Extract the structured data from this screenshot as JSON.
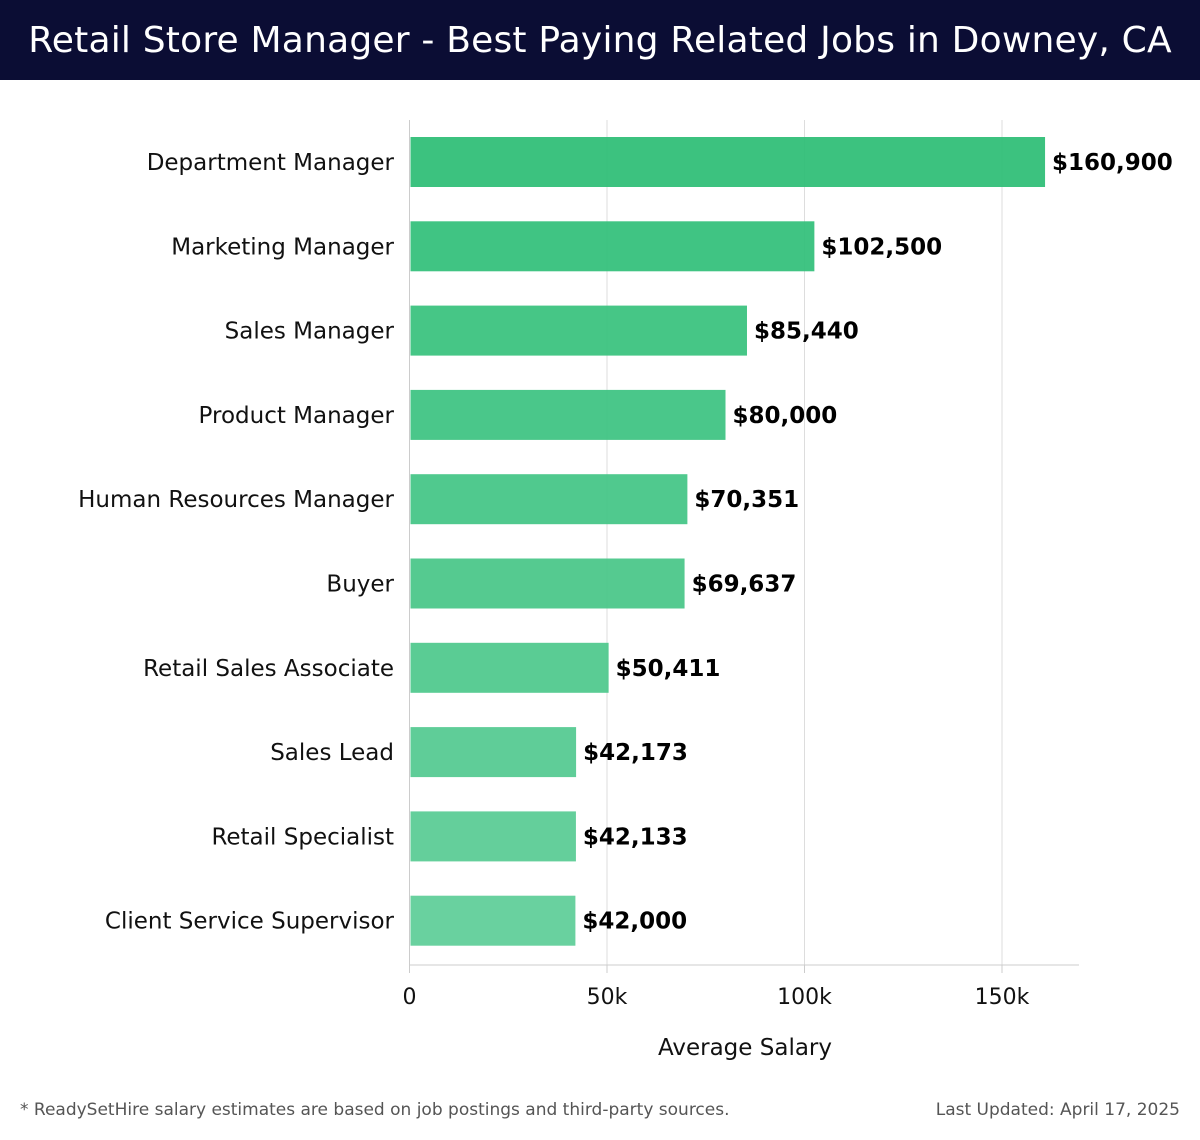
{
  "header": {
    "title": "Retail Store Manager - Best Paying Related Jobs in Downey, CA"
  },
  "chart_data": {
    "type": "bar",
    "orientation": "horizontal",
    "title": "Retail Store Manager - Best Paying Related Jobs in Downey, CA",
    "xlabel": "Average Salary",
    "ylabel": "",
    "xlim": [
      0,
      170000
    ],
    "x_ticks": [
      0,
      50000,
      100000,
      150000
    ],
    "x_tick_labels": [
      "0",
      "50k",
      "100k",
      "150k"
    ],
    "grid": "vertical",
    "categories": [
      "Department Manager",
      "Marketing Manager",
      "Sales Manager",
      "Product Manager",
      "Human Resources Manager",
      "Buyer",
      "Retail Sales Associate",
      "Sales Lead",
      "Retail Specialist",
      "Client Service Supervisor"
    ],
    "values": [
      160900,
      102500,
      85440,
      80000,
      70351,
      69637,
      50411,
      42173,
      42133,
      42000
    ],
    "value_labels": [
      "$160,900",
      "$102,500",
      "$85,440",
      "$80,000",
      "$70,351",
      "$69,637",
      "$50,411",
      "$42,173",
      "$42,133",
      "$42,000"
    ],
    "colors": {
      "bar_top": "#2bbd74",
      "bar_bottom": "#5ccd97",
      "grid": "#dddddd",
      "axis": "#cccccc",
      "text": "#111111"
    }
  },
  "footer": {
    "note": "* ReadySetHire salary estimates are based on job postings and third-party sources.",
    "updated": "Last Updated: April 17, 2025"
  }
}
